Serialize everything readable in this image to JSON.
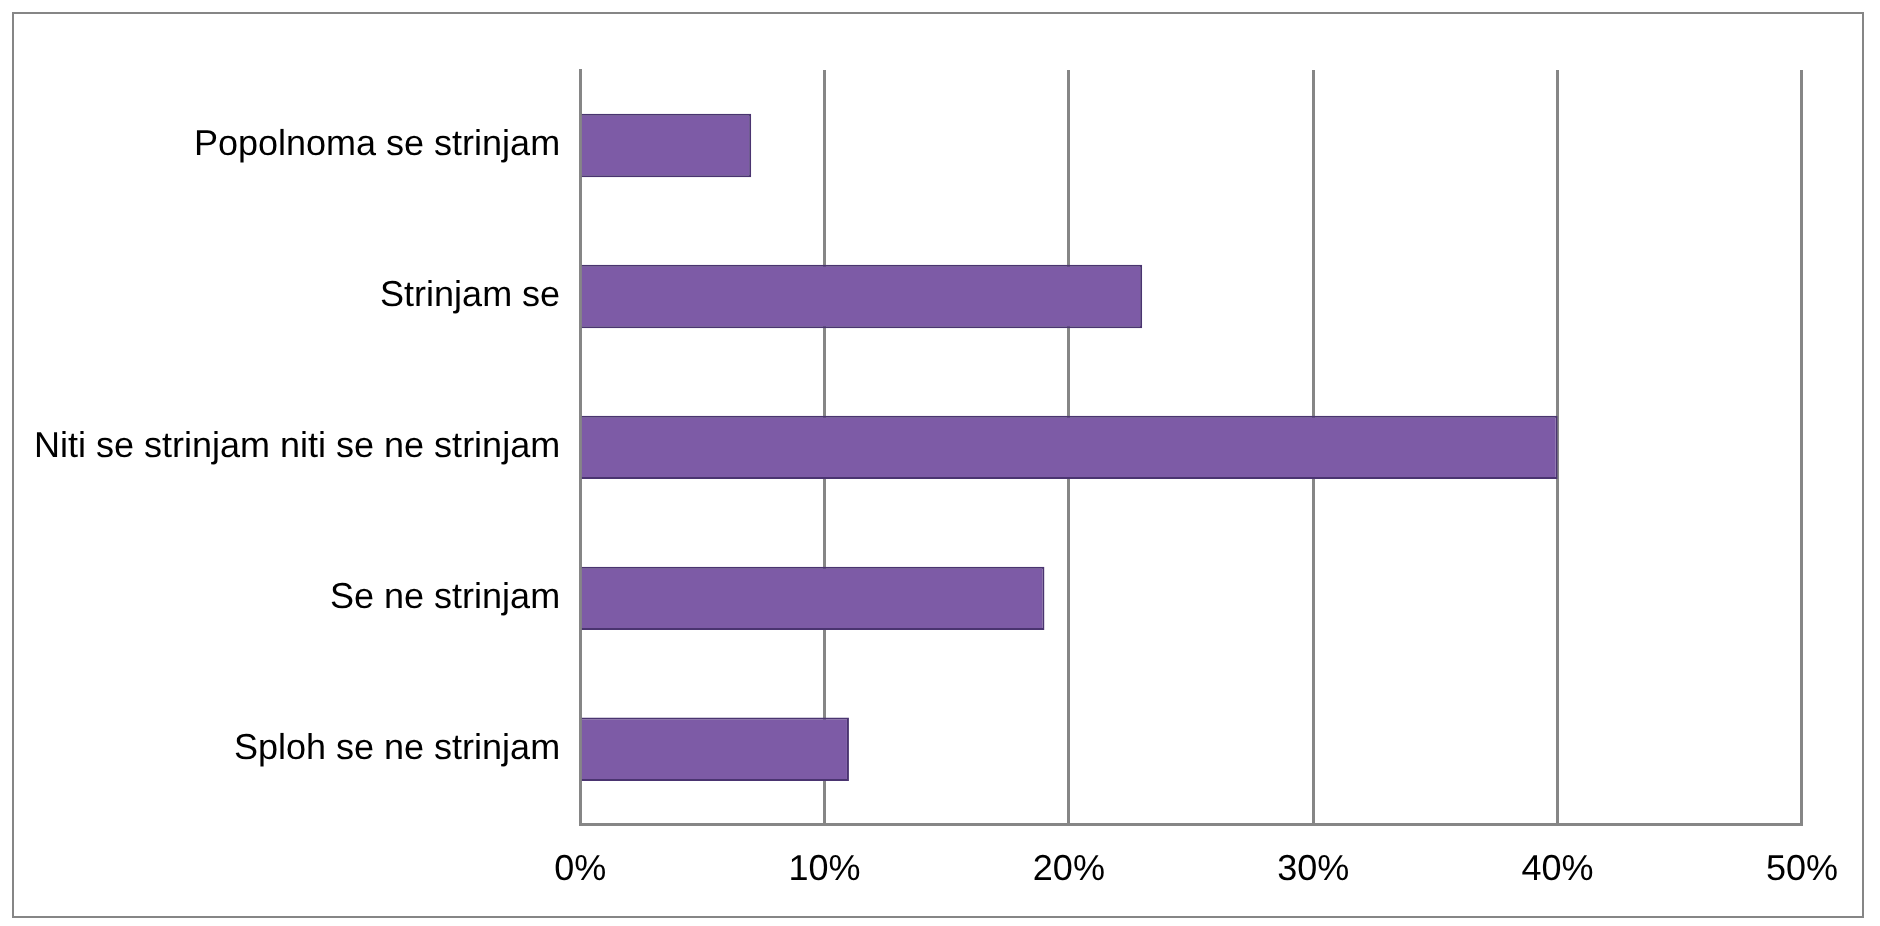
{
  "chart_data": {
    "type": "bar",
    "orientation": "horizontal",
    "categories": [
      "Popolnoma se strinjam",
      "Strinjam se",
      "Niti se strinjam niti se ne strinjam",
      "Se ne strinjam",
      "Sploh se ne strinjam"
    ],
    "values": [
      7,
      23,
      40,
      19,
      11
    ],
    "color": "#7d5ba6",
    "xlim": [
      0,
      50
    ],
    "xticks": [
      {
        "value": 0,
        "label": "0%"
      },
      {
        "value": 10,
        "label": "10%"
      },
      {
        "value": 20,
        "label": "20%"
      },
      {
        "value": 30,
        "label": "30%"
      },
      {
        "value": 40,
        "label": "40%"
      },
      {
        "value": 50,
        "label": "50%"
      }
    ],
    "grid": "x",
    "legend": false
  }
}
